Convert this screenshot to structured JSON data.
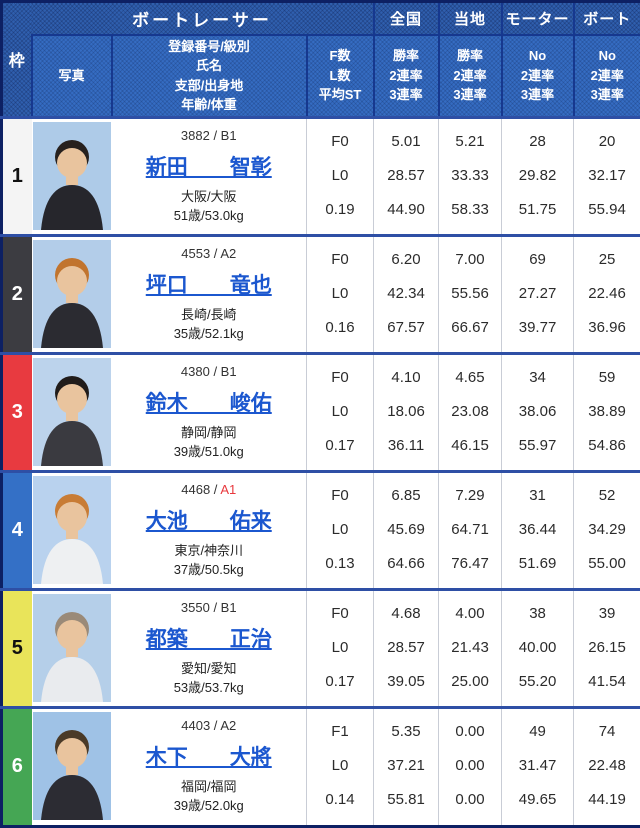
{
  "table": {
    "header": {
      "frame": "枠",
      "racer_group": "ボートレーサー",
      "photo": "写真",
      "profile_lines": [
        "登録番号/級別",
        "氏名",
        "支部/出身地",
        "年齢/体重"
      ],
      "fl_lines": [
        "F数",
        "L数",
        "平均ST"
      ],
      "columns": [
        {
          "label": "全国",
          "sub": [
            "勝率",
            "2連率",
            "3連率"
          ]
        },
        {
          "label": "当地",
          "sub": [
            "勝率",
            "2連率",
            "3連率"
          ]
        },
        {
          "label": "モーター",
          "sub": [
            "No",
            "2連率",
            "3連率"
          ]
        },
        {
          "label": "ボート",
          "sub": [
            "No",
            "2連率",
            "3連率"
          ]
        }
      ]
    },
    "rows": [
      {
        "frame": "1",
        "reg_prefix": "3882 / ",
        "class": "B1",
        "class_style": "color:#333333",
        "name": "新田　　智彰",
        "branch": "大阪/大阪",
        "age_weight": "51歳/53.0kg",
        "fl": [
          "F0",
          "L0",
          "0.19"
        ],
        "national": [
          "5.01",
          "28.57",
          "44.90"
        ],
        "local": [
          "5.21",
          "33.33",
          "58.33"
        ],
        "motor": [
          "28",
          "29.82",
          "51.75"
        ],
        "boat": [
          "20",
          "32.17",
          "55.94"
        ],
        "photo": {
          "bg": "#aecbe8",
          "jacket": "#26262c",
          "hair": "#27211e"
        }
      },
      {
        "frame": "2",
        "reg_prefix": "4553 / ",
        "class": "A2",
        "class_style": "color:#333333",
        "name": "坪口　　竜也",
        "branch": "長崎/長崎",
        "age_weight": "35歳/52.1kg",
        "fl": [
          "F0",
          "L0",
          "0.16"
        ],
        "national": [
          "6.20",
          "42.34",
          "67.57"
        ],
        "local": [
          "7.00",
          "55.56",
          "66.67"
        ],
        "motor": [
          "69",
          "27.27",
          "39.77"
        ],
        "boat": [
          "25",
          "22.46",
          "36.96"
        ],
        "photo": {
          "bg": "#b3cde9",
          "jacket": "#2b2b31",
          "hair": "#c1742e"
        }
      },
      {
        "frame": "3",
        "reg_prefix": "4380 / ",
        "class": "B1",
        "class_style": "color:#333333",
        "name": "鈴木　　峻佑",
        "branch": "静岡/静岡",
        "age_weight": "39歳/51.0kg",
        "fl": [
          "F0",
          "L0",
          "0.17"
        ],
        "national": [
          "4.10",
          "18.06",
          "36.11"
        ],
        "local": [
          "4.65",
          "23.08",
          "46.15"
        ],
        "motor": [
          "34",
          "38.06",
          "55.97"
        ],
        "boat": [
          "59",
          "38.89",
          "54.86"
        ],
        "photo": {
          "bg": "#bcd3ec",
          "jacket": "#3a3a40",
          "hair": "#211c1a"
        }
      },
      {
        "frame": "4",
        "reg_prefix": "4468 / ",
        "class": "A1",
        "class_style": "color:#e8383d",
        "name": "大池　　佑来",
        "branch": "東京/神奈川",
        "age_weight": "37歳/50.5kg",
        "fl": [
          "F0",
          "L0",
          "0.13"
        ],
        "national": [
          "6.85",
          "45.69",
          "64.66"
        ],
        "local": [
          "7.29",
          "64.71",
          "76.47"
        ],
        "motor": [
          "31",
          "36.44",
          "51.69"
        ],
        "boat": [
          "52",
          "34.29",
          "55.00"
        ],
        "photo": {
          "bg": "#b9d2ee",
          "jacket": "#eef0f2",
          "hair": "#c87c35"
        }
      },
      {
        "frame": "5",
        "reg_prefix": "3550 / ",
        "class": "B1",
        "class_style": "color:#333333",
        "name": "都築　　正治",
        "branch": "愛知/愛知",
        "age_weight": "53歳/53.7kg",
        "fl": [
          "F0",
          "L0",
          "0.17"
        ],
        "national": [
          "4.68",
          "28.57",
          "39.05"
        ],
        "local": [
          "4.00",
          "21.43",
          "25.00"
        ],
        "motor": [
          "38",
          "40.00",
          "55.20"
        ],
        "boat": [
          "39",
          "26.15",
          "41.54"
        ],
        "photo": {
          "bg": "#b5cfe9",
          "jacket": "#e9ebee",
          "hair": "#9a8a78"
        }
      },
      {
        "frame": "6",
        "reg_prefix": "4403 / ",
        "class": "A2",
        "class_style": "color:#333333",
        "name": "木下　　大將",
        "branch": "福岡/福岡",
        "age_weight": "39歳/52.0kg",
        "fl": [
          "F1",
          "L0",
          "0.14"
        ],
        "national": [
          "5.35",
          "37.21",
          "55.81"
        ],
        "local": [
          "0.00",
          "0.00",
          "0.00"
        ],
        "motor": [
          "49",
          "31.47",
          "49.65"
        ],
        "boat": [
          "74",
          "22.48",
          "44.19"
        ],
        "photo": {
          "bg": "#9fc2e6",
          "jacket": "#2c2c33",
          "hair": "#4a3a28"
        }
      }
    ],
    "colors": {
      "header_blue": "#2f5fae",
      "header_cell_blue": "#356cc2",
      "grid_navy": "#16388f",
      "outer_border_navy": "#0d2063",
      "row_divider_blue": "#2e4fa5",
      "link_blue": "#1b57cf",
      "class_a1_red": "#e8383d",
      "frame_colors": {
        "1": "#f4f4f4",
        "2": "#3c3c41",
        "3": "#e83a40",
        "4": "#3470c6",
        "5": "#e9e45a",
        "6": "#45a654"
      }
    }
  }
}
